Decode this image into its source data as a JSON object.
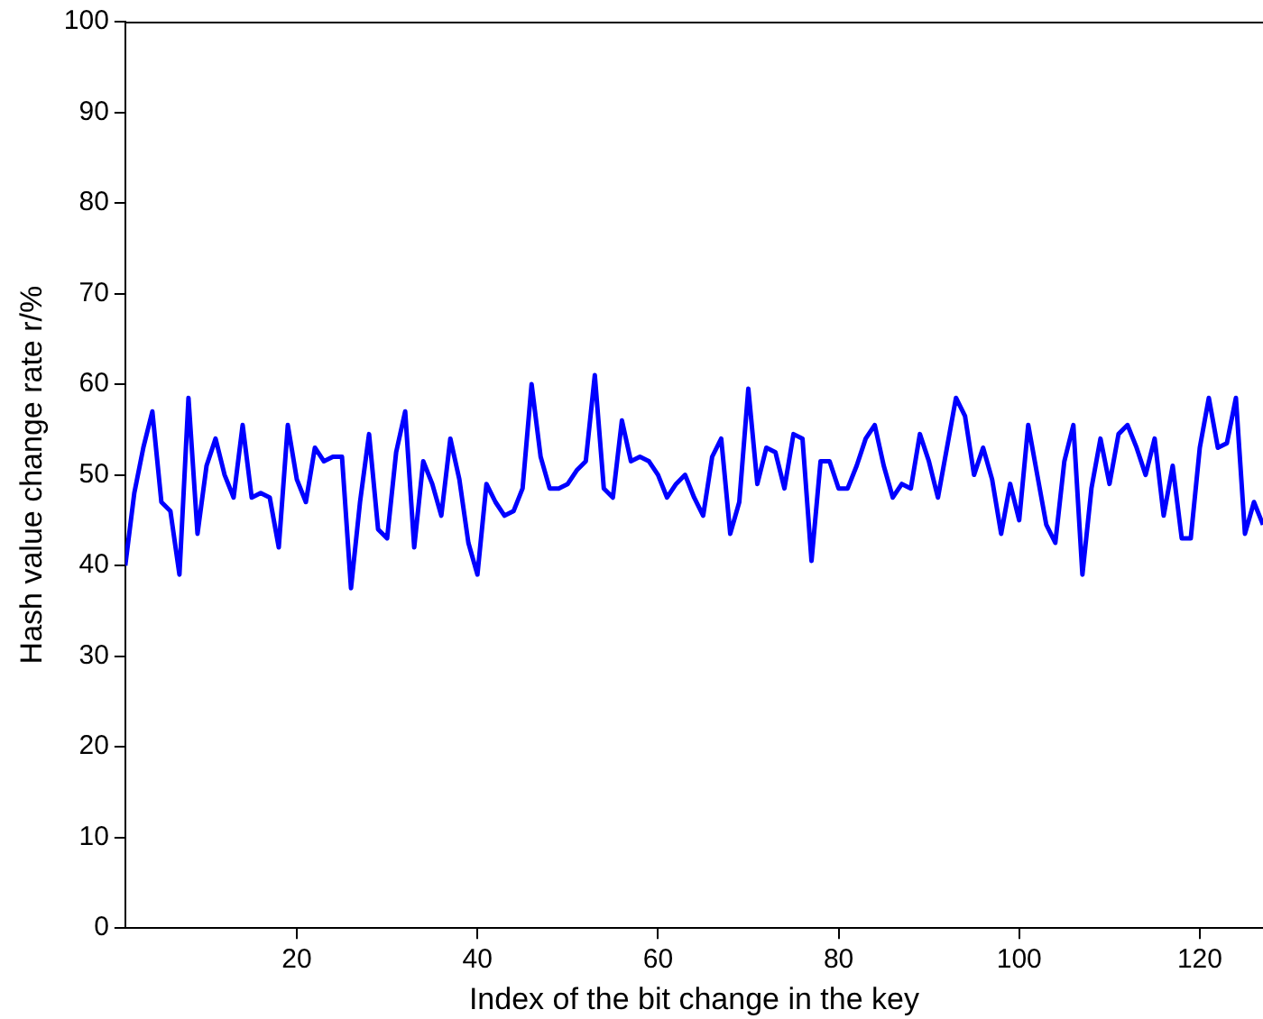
{
  "chart_data": {
    "type": "line",
    "xlabel": "Index of the bit change in the key",
    "ylabel": "Hash value change rate r/%",
    "x": [
      1,
      2,
      3,
      4,
      5,
      6,
      7,
      8,
      9,
      10,
      11,
      12,
      13,
      14,
      15,
      16,
      17,
      18,
      19,
      20,
      21,
      22,
      23,
      24,
      25,
      26,
      27,
      28,
      29,
      30,
      31,
      32,
      33,
      34,
      35,
      36,
      37,
      38,
      39,
      40,
      41,
      42,
      43,
      44,
      45,
      46,
      47,
      48,
      49,
      50,
      51,
      52,
      53,
      54,
      55,
      56,
      57,
      58,
      59,
      60,
      61,
      62,
      63,
      64,
      65,
      66,
      67,
      68,
      69,
      70,
      71,
      72,
      73,
      74,
      75,
      76,
      77,
      78,
      79,
      80,
      81,
      82,
      83,
      84,
      85,
      86,
      87,
      88,
      89,
      90,
      91,
      92,
      93,
      94,
      95,
      96,
      97,
      98,
      99,
      100,
      101,
      102,
      103,
      104,
      105,
      106,
      107,
      108,
      109,
      110,
      111,
      112,
      113,
      114,
      115,
      116,
      117,
      118,
      119,
      120,
      121,
      122,
      123,
      124,
      125,
      126,
      127
    ],
    "series": [
      {
        "color": "#0000ff",
        "values": [
          40,
          48,
          53,
          57,
          47,
          46,
          39,
          58.5,
          43.5,
          51,
          54,
          50,
          47.5,
          55.5,
          47.5,
          48,
          47.5,
          42,
          55.5,
          49.5,
          47,
          53,
          51.5,
          52,
          52,
          37.5,
          47,
          54.5,
          44,
          43,
          52.5,
          57,
          42,
          51.5,
          49,
          45.5,
          54,
          49.5,
          42.5,
          39,
          49,
          47,
          45.5,
          46,
          48.5,
          60,
          52,
          48.5,
          48.5,
          49,
          50.5,
          51.5,
          61,
          48.5,
          47.5,
          56,
          51.5,
          52,
          51.5,
          50,
          47.5,
          49,
          50,
          47.5,
          45.5,
          52,
          54,
          43.5,
          47,
          59.5,
          49,
          53,
          52.5,
          48.5,
          54.5,
          54,
          40.5,
          51.5,
          51.5,
          48.5,
          48.5,
          51,
          54,
          55.5,
          51,
          47.5,
          49,
          48.5,
          54.5,
          51.5,
          47.5,
          53,
          58.5,
          56.5,
          50,
          53,
          49.5,
          43.5,
          49,
          45,
          55.5,
          50,
          44.5,
          42.5,
          51.5,
          55.5,
          39,
          48.5,
          54,
          49,
          54.5,
          55.5,
          53,
          50,
          54,
          45.5,
          51,
          43,
          43,
          53,
          58.5,
          53,
          53.5,
          58.5,
          43.5,
          47,
          44.5
        ]
      }
    ],
    "xlim": [
      1,
      127
    ],
    "xticks": [
      20,
      40,
      60,
      80,
      100,
      120
    ],
    "ylim": [
      0,
      100
    ],
    "yticks": [
      0,
      10,
      20,
      30,
      40,
      50,
      60,
      70,
      80,
      90,
      100
    ],
    "grid": false,
    "legend": false,
    "marker": "none",
    "line_style": "solid"
  }
}
